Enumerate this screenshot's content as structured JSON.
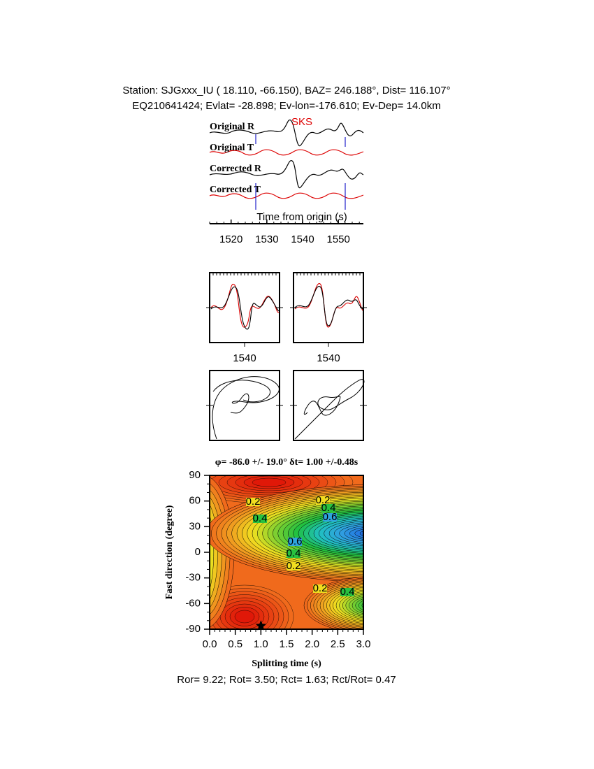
{
  "header": {
    "line1": "Station: SJGxxx_IU (  18.110,  -66.150), BAZ=  246.188°, Dist=  116.107°",
    "line2": "EQ210641424; Evlat= -28.898; Ev-lon=-176.610; Ev-Dep= 14.0km"
  },
  "traces": {
    "labels": [
      "Original R",
      "Original T",
      "Corrected R",
      "Corrected T"
    ],
    "phase": "SKS",
    "xlabel": "Time from origin (s)",
    "xlim": [
      1514,
      1557
    ],
    "xticks": [
      1520,
      1530,
      1540,
      1550
    ]
  },
  "windows": {
    "xlim": [
      1520,
      1560
    ],
    "xticks": [
      1540
    ]
  },
  "grid_search": {
    "title": "φ= -86.0 +/- 19.0° δt= 1.00 +/-0.48s",
    "xlabel": "Splitting time (s)",
    "ylabel": "Fast direction (degree)",
    "xlim": [
      0,
      3
    ],
    "ylim": [
      -90,
      90
    ],
    "xticks": [
      {
        "value": 0,
        "label": "0.0"
      },
      {
        "value": 0.5,
        "label": "0.5"
      },
      {
        "value": 1,
        "label": "1.0"
      },
      {
        "value": 1.5,
        "label": "1.5"
      },
      {
        "value": 2,
        "label": "2.0"
      },
      {
        "value": 2.5,
        "label": "2.5"
      },
      {
        "value": 3,
        "label": "3.0"
      }
    ],
    "yticks": [
      -90,
      -60,
      -30,
      0,
      30,
      60,
      90
    ],
    "best": {
      "dt": 1.0,
      "phi": -86
    },
    "contour_labels": [
      "0.2",
      "0.2",
      "0.4",
      "0.4",
      "0.6",
      "0.6",
      "0.4",
      "0.2",
      "0.2",
      "0.4"
    ]
  },
  "footer": "Ror= 9.22; Rot= 3.50; Rct= 1.63; Rct/Rot= 0.47"
}
